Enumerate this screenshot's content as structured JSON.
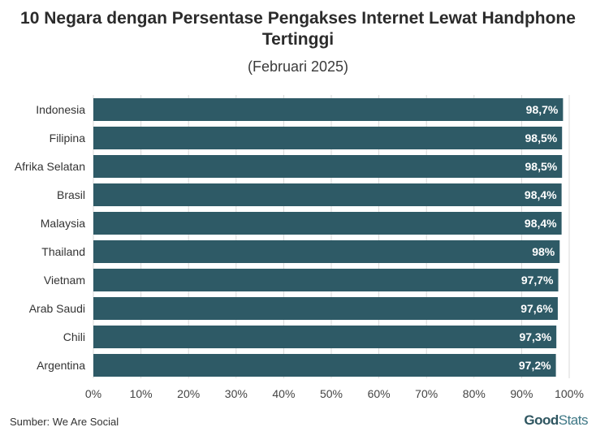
{
  "title": "10 Negara dengan Persentase Pengakses Internet Lewat Handphone Tertinggi",
  "subtitle": "(Februari 2025)",
  "source": "Sumber: We Are Social",
  "logo": {
    "part1": "Good",
    "part2": "Stats"
  },
  "colors": {
    "bar": "#2e5a66",
    "grid": "#d9d9d9",
    "label": "#ffffff"
  },
  "chart_data": {
    "type": "bar",
    "orientation": "horizontal",
    "categories": [
      "Indonesia",
      "Filipina",
      "Afrika Selatan",
      "Brasil",
      "Malaysia",
      "Thailand",
      "Vietnam",
      "Arab Saudi",
      "Chili",
      "Argentina"
    ],
    "values": [
      98.7,
      98.5,
      98.5,
      98.4,
      98.4,
      98,
      97.7,
      97.6,
      97.3,
      97.2
    ],
    "value_labels": [
      "98,7%",
      "98,5%",
      "98,5%",
      "98,4%",
      "98,4%",
      "98%",
      "97,7%",
      "97,6%",
      "97,3%",
      "97,2%"
    ],
    "xlim": [
      0,
      100
    ],
    "xticks": [
      0,
      10,
      20,
      30,
      40,
      50,
      60,
      70,
      80,
      90,
      100
    ],
    "xtick_labels": [
      "0%",
      "10%",
      "20%",
      "30%",
      "40%",
      "50%",
      "60%",
      "70%",
      "80%",
      "90%",
      "100%"
    ],
    "grid": true
  }
}
